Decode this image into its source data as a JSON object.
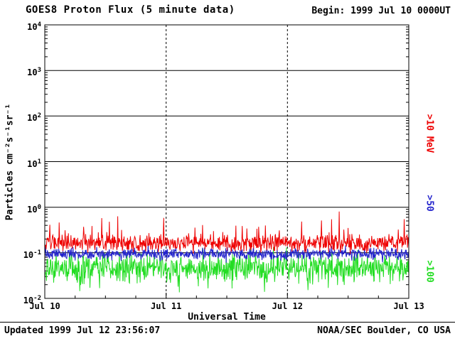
{
  "header": {
    "begin_label": "Begin: 1999 Jul 10 0000UT"
  },
  "footer": {
    "updated": "Updated 1999 Jul 12 23:56:07",
    "source": "NOAA/SEC Boulder, CO USA"
  },
  "chart_data": {
    "type": "line",
    "title": "GOES8 Proton Flux (5 minute data)",
    "xlabel": "Universal Time",
    "ylabel": "Particles cm⁻²s⁻¹sr⁻¹",
    "x_ticks": [
      "Jul 10",
      "Jul 11",
      "Jul 12",
      "Jul 13"
    ],
    "x_range_days": 3,
    "x_minor_tick_hours": 6,
    "ylog": true,
    "ylim": [
      0.01,
      10000
    ],
    "y_tick_exponents": [
      -2,
      -1,
      0,
      1,
      2,
      3,
      4
    ],
    "solid_hgrid_exponents": [
      -1,
      0,
      1,
      2,
      3
    ],
    "dashed_vgrid_day_indices": [
      1,
      2
    ],
    "grid": true,
    "legend_position": "right",
    "points_per_day": 288,
    "noise_seed": 19990710,
    "series": [
      {
        "name": ">10 MeV",
        "color": "#ee0000",
        "typical_flux": 0.17,
        "flux_range": [
          0.09,
          0.65
        ],
        "log10_mean": -0.78,
        "log10_sigma": 0.09,
        "spike_prob": 0.05,
        "spike_log10": 0.55
      },
      {
        "name": ">50",
        "color": "#2222cc",
        "typical_flux": 0.095,
        "flux_range": [
          0.06,
          0.2
        ],
        "log10_mean": -1.03,
        "log10_sigma": 0.06,
        "spike_prob": 0.02,
        "spike_log10": 0.2
      },
      {
        "name": ">100",
        "color": "#22dd22",
        "typical_flux": 0.047,
        "flux_range": [
          0.015,
          0.1
        ],
        "log10_mean": -1.33,
        "log10_sigma": 0.16,
        "spike_prob": 0.02,
        "spike_log10": 0.18,
        "dip_prob": 0.04,
        "dip_log10": 0.35
      }
    ]
  }
}
